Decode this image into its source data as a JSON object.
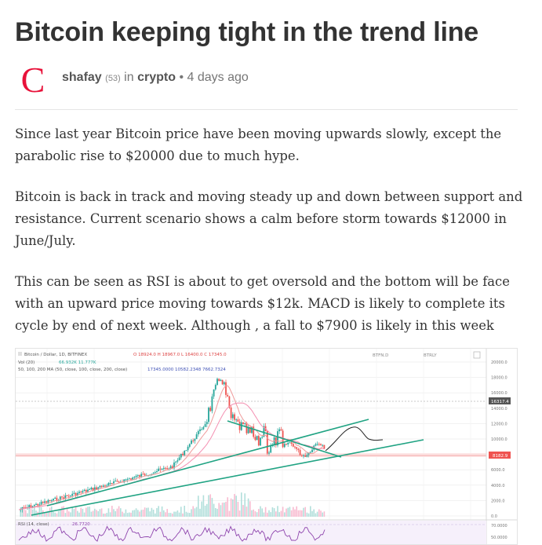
{
  "post": {
    "title": "Bitcoin keeping tight in the trend line",
    "avatar_letter": "C",
    "author": "shafay",
    "reputation": "(53)",
    "in_word": "in",
    "category": "crypto",
    "separator": "•",
    "time_ago": "4 days ago"
  },
  "body": {
    "paragraphs": [
      "Since last year Bitcoin price have been moving upwards slowly, except the parabolic rise to $20000 due to much hype.",
      "Bitcoin is back in track and moving steady up and down between support and resistance. Current scenario shows a calm before storm towards $12000 in June/July.",
      "This can be seen as RSI is about to get oversold and the bottom will be face with an upward price moving towards $12k. MACD is likely to complete its cycle by end of next week. Although , a fall to $7900 is likely in this week"
    ]
  },
  "chart": {
    "legend_symbol": "Bitcoin / Dollar, 1D, BITFINEX",
    "ohlc": "O 18924.0  H 18967.0  L 16400.0  C 17345.0",
    "vol_label": "Vol (20)",
    "vol_values": "66.932K  11.777K",
    "ma_label": "50, 100, 200 MA (50, close, 100, close, 200, close)",
    "ma_values": "17345.0000  10582.2348  7662.7324",
    "rsi_label": "RSI (14, close)",
    "rsi_value": "26.7720",
    "top_tag_1": "BTFN.D",
    "top_tag_2": "BTRLY",
    "price_ticks": [
      "20000.0",
      "18000.0",
      "16000.0",
      "14000.0",
      "12000.0",
      "10000.0",
      "8000.0",
      "6000.0",
      "4000.0",
      "2000.0",
      "0.0"
    ],
    "last_price_tag": "8182.9",
    "high_tag": "16317.4",
    "rsi_ticks": [
      "70.0000",
      "50.0000"
    ],
    "colors": {
      "up": "#26a69a",
      "down": "#ef5350",
      "trend": "#20a383",
      "projection": "#222222",
      "ma": "#e57373",
      "rsi": "#8e44ad"
    }
  }
}
